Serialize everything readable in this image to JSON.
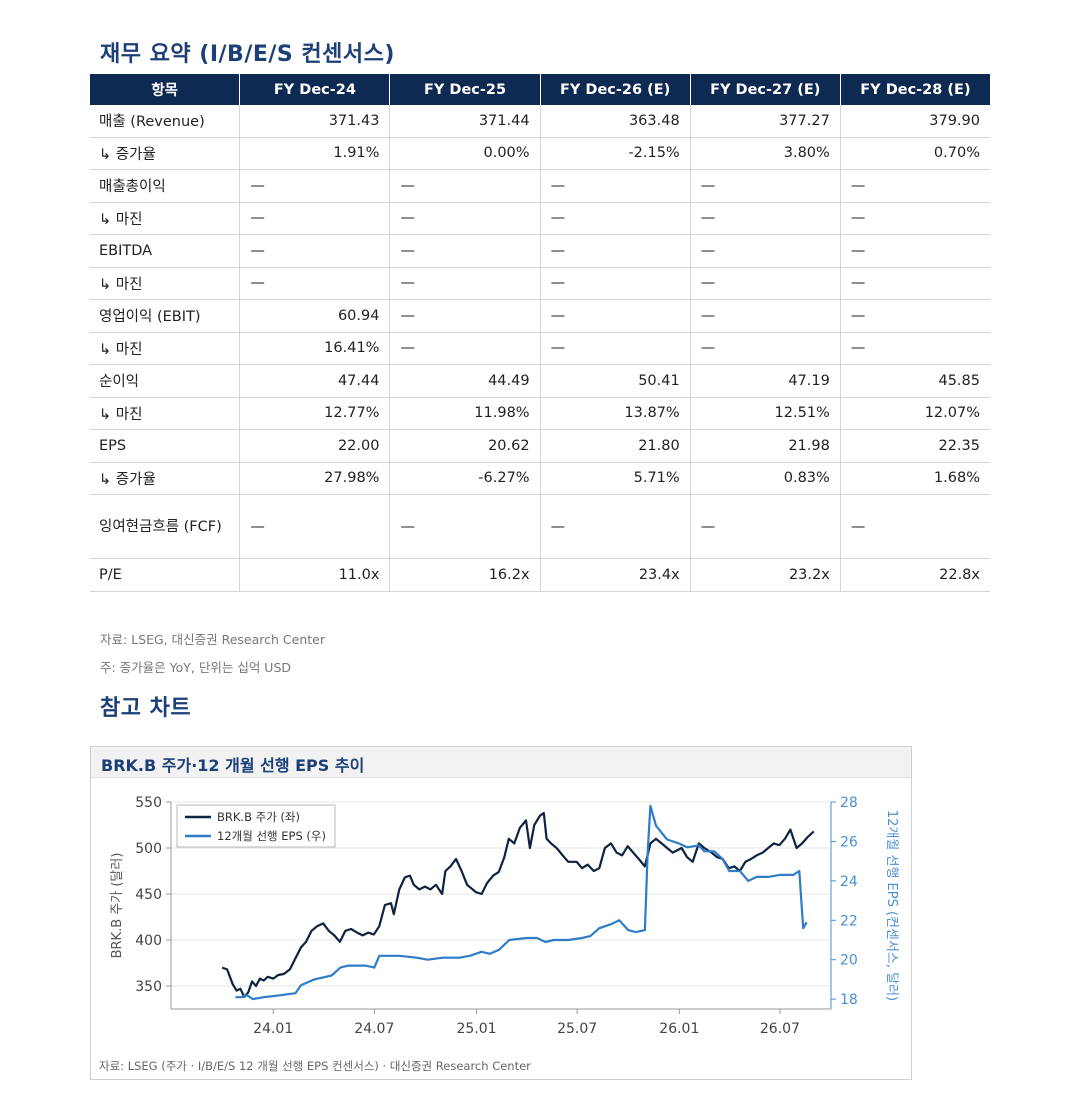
{
  "section1_title": "재무 요약 (I/B/E/S 컨센서스)",
  "table": {
    "headers": [
      "항목",
      "FY Dec-24",
      "FY Dec-25",
      "FY Dec-26 (E)",
      "FY Dec-27 (E)",
      "FY Dec-28 (E)"
    ],
    "rows": [
      {
        "label": "매출 (Revenue)",
        "values": [
          "371.43",
          "371.44",
          "363.48",
          "377.27",
          "379.90"
        ]
      },
      {
        "label": "↳ 증가율",
        "values": [
          "1.91%",
          "0.00%",
          "-2.15%",
          "3.80%",
          "0.70%"
        ]
      },
      {
        "label": "매출총이익",
        "values": [
          "—",
          "—",
          "—",
          "—",
          "—"
        ]
      },
      {
        "label": "↳ 마진",
        "values": [
          "—",
          "—",
          "—",
          "—",
          "—"
        ]
      },
      {
        "label": "EBITDA",
        "values": [
          "—",
          "—",
          "—",
          "—",
          "—"
        ]
      },
      {
        "label": "↳ 마진",
        "values": [
          "—",
          "—",
          "—",
          "—",
          "—"
        ]
      },
      {
        "label": "영업이익 (EBIT)",
        "values": [
          "60.94",
          "—",
          "—",
          "—",
          "—"
        ]
      },
      {
        "label": "↳ 마진",
        "values": [
          "16.41%",
          "—",
          "—",
          "—",
          "—"
        ]
      },
      {
        "label": "순이익",
        "values": [
          "47.44",
          "44.49",
          "50.41",
          "47.19",
          "45.85"
        ]
      },
      {
        "label": "↳ 마진",
        "values": [
          "12.77%",
          "11.98%",
          "13.87%",
          "12.51%",
          "12.07%"
        ]
      },
      {
        "label": "EPS",
        "values": [
          "22.00",
          "20.62",
          "21.80",
          "21.98",
          "22.35"
        ]
      },
      {
        "label": "↳ 증가율",
        "values": [
          "27.98%",
          "-6.27%",
          "5.71%",
          "0.83%",
          "1.68%"
        ]
      },
      {
        "label": "잉여현금흐름 (FCF)",
        "values": [
          "—",
          "—",
          "—",
          "—",
          "—"
        ]
      },
      {
        "label": "P/E",
        "values": [
          "11.0x",
          "16.2x",
          "23.4x",
          "23.2x",
          "22.8x"
        ]
      }
    ]
  },
  "note_source": "자료: LSEG, 대신증권 Research Center",
  "note_unit": "주: 증가율은 YoY, 단위는 십억 USD",
  "section2_title": "참고 차트",
  "chart_box_title": "BRK.B 주가·12 개월 선행 EPS 추이",
  "chart_source": "자료: LSEG (주가 · I/B/E/S 12 개월 선행 EPS 컨센서스) · 대신증권 Research Center",
  "colors": {
    "header_bg": "#0f2a52",
    "title": "#1c3f77",
    "price_line": "#0d2340",
    "eps_line": "#2f7dc8"
  },
  "chart_data": {
    "type": "line",
    "title": "BRK.B 주가·12 개월 선행 EPS 추이",
    "ylabel_left": "BRK.B 주가 (달러)",
    "ylabel_right": "12개월 선행 EPS (컨센서스, 달러)",
    "ylim_left": [
      325,
      550
    ],
    "ylim_right": [
      17.5,
      28
    ],
    "yticks_left": [
      350,
      400,
      450,
      500,
      550
    ],
    "yticks_right": [
      18,
      20,
      22,
      24,
      26,
      28
    ],
    "xticks": [
      "24.01",
      "24.07",
      "25.01",
      "25.07",
      "26.01",
      "26.07"
    ],
    "legend": "top-left",
    "grid": true,
    "series": [
      {
        "name": "BRK.B 주가 (좌)",
        "axis": "left",
        "points": [
          [
            "2023-10-01",
            370
          ],
          [
            "2023-10-10",
            368
          ],
          [
            "2023-10-20",
            352
          ],
          [
            "2023-10-27",
            345
          ],
          [
            "2023-11-03",
            347
          ],
          [
            "2023-11-10",
            338
          ],
          [
            "2023-11-17",
            343
          ],
          [
            "2023-11-24",
            355
          ],
          [
            "2023-12-01",
            350
          ],
          [
            "2023-12-08",
            358
          ],
          [
            "2023-12-15",
            356
          ],
          [
            "2023-12-22",
            360
          ],
          [
            "2024-01-01",
            358
          ],
          [
            "2024-01-10",
            362
          ],
          [
            "2024-01-20",
            363
          ],
          [
            "2024-01-31",
            368
          ],
          [
            "2024-02-10",
            380
          ],
          [
            "2024-02-20",
            392
          ],
          [
            "2024-02-29",
            398
          ],
          [
            "2024-03-10",
            410
          ],
          [
            "2024-03-20",
            415
          ],
          [
            "2024-03-31",
            418
          ],
          [
            "2024-04-10",
            410
          ],
          [
            "2024-04-20",
            405
          ],
          [
            "2024-04-30",
            398
          ],
          [
            "2024-05-10",
            410
          ],
          [
            "2024-05-20",
            412
          ],
          [
            "2024-05-31",
            408
          ],
          [
            "2024-06-10",
            405
          ],
          [
            "2024-06-20",
            408
          ],
          [
            "2024-06-30",
            406
          ],
          [
            "2024-07-10",
            415
          ],
          [
            "2024-07-20",
            438
          ],
          [
            "2024-07-31",
            440
          ],
          [
            "2024-08-05",
            428
          ],
          [
            "2024-08-15",
            455
          ],
          [
            "2024-08-25",
            468
          ],
          [
            "2024-09-03",
            470
          ],
          [
            "2024-09-10",
            460
          ],
          [
            "2024-09-20",
            455
          ],
          [
            "2024-09-30",
            458
          ],
          [
            "2024-10-10",
            455
          ],
          [
            "2024-10-20",
            460
          ],
          [
            "2024-10-31",
            450
          ],
          [
            "2024-11-06",
            475
          ],
          [
            "2024-11-15",
            480
          ],
          [
            "2024-11-25",
            488
          ],
          [
            "2024-12-05",
            475
          ],
          [
            "2024-12-15",
            460
          ],
          [
            "2024-12-31",
            452
          ],
          [
            "2025-01-10",
            450
          ],
          [
            "2025-01-20",
            462
          ],
          [
            "2025-01-31",
            470
          ],
          [
            "2025-02-10",
            474
          ],
          [
            "2025-02-20",
            490
          ],
          [
            "2025-02-28",
            510
          ],
          [
            "2025-03-10",
            505
          ],
          [
            "2025-03-20",
            522
          ],
          [
            "2025-03-31",
            530
          ],
          [
            "2025-04-07",
            500
          ],
          [
            "2025-04-15",
            525
          ],
          [
            "2025-04-25",
            535
          ],
          [
            "2025-05-02",
            538
          ],
          [
            "2025-05-07",
            510
          ],
          [
            "2025-05-15",
            505
          ],
          [
            "2025-05-25",
            500
          ],
          [
            "2025-06-05",
            492
          ],
          [
            "2025-06-15",
            485
          ],
          [
            "2025-06-30",
            485
          ],
          [
            "2025-07-10",
            478
          ],
          [
            "2025-07-20",
            482
          ],
          [
            "2025-07-31",
            475
          ],
          [
            "2025-08-10",
            478
          ],
          [
            "2025-08-20",
            500
          ],
          [
            "2025-08-31",
            505
          ],
          [
            "2025-09-10",
            495
          ],
          [
            "2025-09-20",
            492
          ],
          [
            "2025-09-30",
            502
          ],
          [
            "2025-10-10",
            495
          ],
          [
            "2025-10-20",
            488
          ],
          [
            "2025-10-31",
            480
          ],
          [
            "2025-11-10",
            505
          ],
          [
            "2025-11-20",
            510
          ],
          [
            "2025-11-30",
            505
          ],
          [
            "2025-12-10",
            500
          ],
          [
            "2025-12-20",
            495
          ],
          [
            "2026-01-05",
            500
          ],
          [
            "2026-01-15",
            490
          ],
          [
            "2026-01-25",
            485
          ],
          [
            "2026-02-05",
            505
          ],
          [
            "2026-02-15",
            500
          ],
          [
            "2026-02-28",
            495
          ],
          [
            "2026-03-10",
            490
          ],
          [
            "2026-03-20",
            488
          ],
          [
            "2026-03-31",
            478
          ],
          [
            "2026-04-10",
            480
          ],
          [
            "2026-04-20",
            475
          ],
          [
            "2026-04-30",
            485
          ],
          [
            "2026-05-10",
            488
          ],
          [
            "2026-05-20",
            492
          ],
          [
            "2026-05-31",
            495
          ],
          [
            "2026-06-10",
            500
          ],
          [
            "2026-06-20",
            505
          ],
          [
            "2026-06-30",
            503
          ],
          [
            "2026-07-10",
            510
          ],
          [
            "2026-07-20",
            520
          ],
          [
            "2026-07-31",
            500
          ],
          [
            "2026-08-10",
            505
          ],
          [
            "2026-08-20",
            512
          ],
          [
            "2026-08-31",
            518
          ]
        ]
      },
      {
        "name": "12개월 선행 EPS (우)",
        "axis": "right",
        "points": [
          [
            "2023-10-25",
            18.1
          ],
          [
            "2023-11-05",
            18.1
          ],
          [
            "2023-11-15",
            18.2
          ],
          [
            "2023-11-25",
            18.0
          ],
          [
            "2023-12-15",
            18.1
          ],
          [
            "2024-01-15",
            18.2
          ],
          [
            "2024-02-10",
            18.3
          ],
          [
            "2024-02-20",
            18.7
          ],
          [
            "2024-03-15",
            19.0
          ],
          [
            "2024-04-15",
            19.2
          ],
          [
            "2024-05-01",
            19.6
          ],
          [
            "2024-05-15",
            19.7
          ],
          [
            "2024-06-15",
            19.7
          ],
          [
            "2024-07-01",
            19.6
          ],
          [
            "2024-07-10",
            20.2
          ],
          [
            "2024-08-15",
            20.2
          ],
          [
            "2024-09-15",
            20.1
          ],
          [
            "2024-10-05",
            20.0
          ],
          [
            "2024-11-01",
            20.1
          ],
          [
            "2024-12-01",
            20.1
          ],
          [
            "2024-12-20",
            20.2
          ],
          [
            "2025-01-10",
            20.4
          ],
          [
            "2025-01-25",
            20.3
          ],
          [
            "2025-02-10",
            20.5
          ],
          [
            "2025-03-01",
            21.0
          ],
          [
            "2025-04-01",
            21.1
          ],
          [
            "2025-04-20",
            21.1
          ],
          [
            "2025-05-05",
            20.9
          ],
          [
            "2025-05-20",
            21.0
          ],
          [
            "2025-06-15",
            21.0
          ],
          [
            "2025-07-10",
            21.1
          ],
          [
            "2025-07-25",
            21.2
          ],
          [
            "2025-08-10",
            21.6
          ],
          [
            "2025-08-31",
            21.8
          ],
          [
            "2025-09-15",
            22.0
          ],
          [
            "2025-10-01",
            21.5
          ],
          [
            "2025-10-15",
            21.4
          ],
          [
            "2025-10-31",
            21.5
          ],
          [
            "2025-11-05",
            25.5
          ],
          [
            "2025-11-10",
            27.8
          ],
          [
            "2025-11-20",
            26.8
          ],
          [
            "2025-12-10",
            26.1
          ],
          [
            "2025-12-31",
            25.9
          ],
          [
            "2026-01-15",
            25.7
          ],
          [
            "2026-02-05",
            25.8
          ],
          [
            "2026-02-15",
            25.5
          ],
          [
            "2026-03-05",
            25.5
          ],
          [
            "2026-03-20",
            25.1
          ],
          [
            "2026-04-01",
            24.5
          ],
          [
            "2026-04-20",
            24.5
          ],
          [
            "2026-05-05",
            24.0
          ],
          [
            "2026-05-20",
            24.2
          ],
          [
            "2026-06-10",
            24.2
          ],
          [
            "2026-07-01",
            24.3
          ],
          [
            "2026-07-25",
            24.3
          ],
          [
            "2026-08-05",
            24.5
          ],
          [
            "2026-08-12",
            21.6
          ],
          [
            "2026-08-18",
            21.9
          ]
        ]
      }
    ]
  }
}
